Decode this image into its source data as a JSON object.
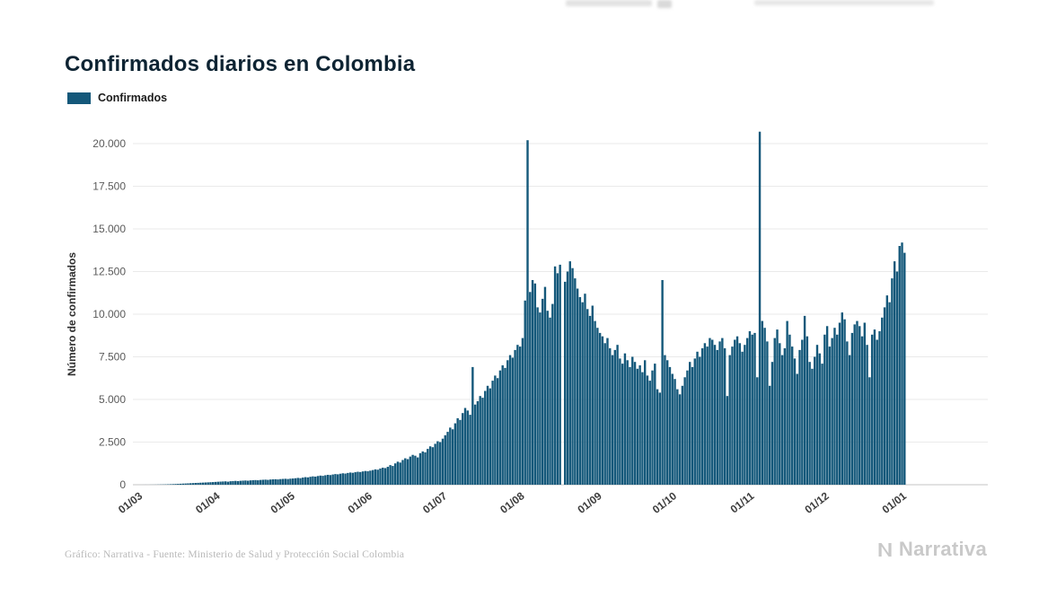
{
  "header": {
    "title": "Confirmados diarios en Colombia"
  },
  "legend": {
    "label": "Confirmados",
    "swatch_color": "#14587a"
  },
  "footer": {
    "source": "Gráfico: Narrativa - Fuente: Ministerio de Salud y Protección Social Colombia",
    "brand": "Narrativa"
  },
  "chart_data": {
    "type": "bar",
    "title": "Confirmados diarios en Colombia",
    "series_name": "Confirmados",
    "bar_color": "#14587a",
    "xlabel": "",
    "ylabel": "Número de confirmados",
    "ylim": [
      0,
      21000
    ],
    "grid": "horizontal",
    "legend_position": "top-left",
    "yticks": [
      {
        "value": 0,
        "label": "0"
      },
      {
        "value": 2500,
        "label": "2.500"
      },
      {
        "value": 5000,
        "label": "5.000"
      },
      {
        "value": 7500,
        "label": "7.500"
      },
      {
        "value": 10000,
        "label": "10.000"
      },
      {
        "value": 12500,
        "label": "12.500"
      },
      {
        "value": 15000,
        "label": "15.000"
      },
      {
        "value": 17500,
        "label": "17.500"
      },
      {
        "value": 20000,
        "label": "20.000"
      }
    ],
    "xticks": [
      {
        "day": 0,
        "label": "01/03"
      },
      {
        "day": 31,
        "label": "01/04"
      },
      {
        "day": 61,
        "label": "01/05"
      },
      {
        "day": 92,
        "label": "01/06"
      },
      {
        "day": 122,
        "label": "01/07"
      },
      {
        "day": 153,
        "label": "01/08"
      },
      {
        "day": 184,
        "label": "01/09"
      },
      {
        "day": 214,
        "label": "01/10"
      },
      {
        "day": 245,
        "label": "01/11"
      },
      {
        "day": 275,
        "label": "01/12"
      },
      {
        "day": 306,
        "label": "01/01"
      }
    ],
    "x_start_label": "01/03",
    "x_unit": "day",
    "values": [
      1,
      2,
      1,
      3,
      4,
      6,
      9,
      12,
      15,
      19,
      24,
      30,
      36,
      43,
      50,
      57,
      65,
      72,
      80,
      88,
      95,
      105,
      110,
      118,
      125,
      132,
      140,
      148,
      155,
      165,
      175,
      182,
      190,
      198,
      178,
      205,
      215,
      225,
      210,
      230,
      240,
      248,
      235,
      255,
      265,
      272,
      260,
      280,
      290,
      298,
      285,
      305,
      315,
      322,
      310,
      330,
      340,
      348,
      335,
      355,
      365,
      380,
      400,
      385,
      420,
      445,
      430,
      465,
      490,
      475,
      510,
      535,
      520,
      555,
      580,
      565,
      600,
      625,
      610,
      645,
      670,
      655,
      690,
      715,
      700,
      735,
      760,
      745,
      780,
      805,
      790,
      825,
      860,
      900,
      880,
      950,
      1000,
      975,
      1050,
      1150,
      1100,
      1250,
      1350,
      1300,
      1450,
      1550,
      1500,
      1650,
      1750,
      1700,
      1600,
      1850,
      1950,
      1900,
      2100,
      2250,
      2200,
      2400,
      2550,
      2500,
      2700,
      2900,
      3100,
      3350,
      3250,
      3600,
      3900,
      3800,
      4200,
      4500,
      4350,
      4100,
      6900,
      4700,
      4900,
      5200,
      5100,
      5500,
      5800,
      5650,
      6100,
      6400,
      6250,
      6700,
      7000,
      6850,
      7300,
      7600,
      7450,
      7900,
      8200,
      8100,
      8600,
      10800,
      20200,
      11300,
      12000,
      11800,
      10400,
      10100,
      10900,
      11600,
      10200,
      9800,
      10600,
      12800,
      12400,
      12900,
      0,
      11900,
      12500,
      13100,
      12700,
      12100,
      11500,
      11000,
      10700,
      11200,
      10300,
      9900,
      10500,
      9600,
      9200,
      8900,
      8700,
      8300,
      8600,
      8000,
      7600,
      7900,
      8200,
      7400,
      7100,
      7700,
      7300,
      6900,
      7500,
      7200,
      6800,
      7000,
      6600,
      7300,
      6400,
      6100,
      6700,
      7100,
      5600,
      5400,
      12000,
      7600,
      7300,
      6900,
      6500,
      6200,
      5600,
      5300,
      5800,
      6300,
      6700,
      7200,
      6900,
      7400,
      7800,
      7500,
      8000,
      8300,
      8100,
      8600,
      8500,
      8200,
      7900,
      8400,
      8600,
      8000,
      5200,
      7600,
      8100,
      8500,
      8700,
      8300,
      7800,
      8200,
      8600,
      9000,
      8800,
      8900,
      6300,
      20700,
      9600,
      9200,
      8400,
      5800,
      7200,
      8600,
      9100,
      8300,
      7600,
      8000,
      9600,
      8800,
      8100,
      7400,
      6500,
      7900,
      8500,
      9900,
      8700,
      7200,
      6800,
      7500,
      8200,
      7700,
      7100,
      8800,
      9300,
      8100,
      8600,
      9200,
      8800,
      9500,
      10100,
      9700,
      8400,
      7600,
      8900,
      9400,
      9600,
      9300,
      8700,
      9500,
      8200,
      6300,
      8800,
      9100,
      8500,
      9000,
      9800,
      10400,
      11100,
      10700,
      12100,
      13100,
      12500,
      14000,
      14200,
      13600
    ]
  }
}
